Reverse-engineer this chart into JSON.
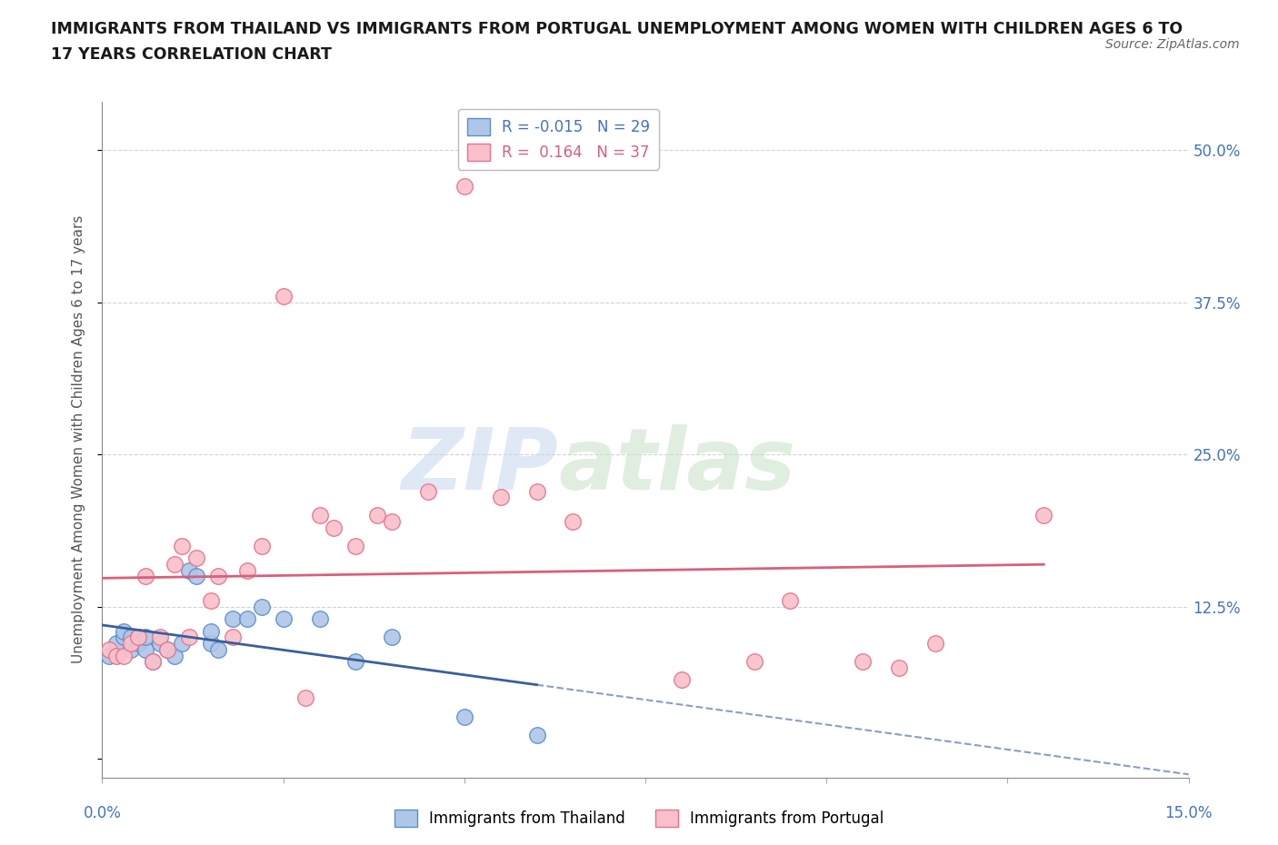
{
  "title": "IMMIGRANTS FROM THAILAND VS IMMIGRANTS FROM PORTUGAL UNEMPLOYMENT AMONG WOMEN WITH CHILDREN AGES 6 TO\n17 YEARS CORRELATION CHART",
  "source_text": "Source: ZipAtlas.com",
  "ylabel": "Unemployment Among Women with Children Ages 6 to 17 years",
  "xlim": [
    0.0,
    0.15
  ],
  "ylim": [
    -0.015,
    0.54
  ],
  "yticks": [
    0.0,
    0.125,
    0.25,
    0.375,
    0.5
  ],
  "ytick_labels": [
    "",
    "12.5%",
    "25.0%",
    "37.5%",
    "50.0%"
  ],
  "r_thailand": -0.015,
  "n_thailand": 29,
  "r_portugal": 0.164,
  "n_portugal": 37,
  "watermark_zip": "ZIP",
  "watermark_atlas": "atlas",
  "thailand_color": "#aec6e8",
  "portugal_color": "#f9c0cb",
  "thailand_edge_color": "#5b8fc9",
  "portugal_edge_color": "#e8728a",
  "thailand_line_color": "#3a5f9f",
  "portugal_line_color": "#d9607a",
  "background_color": "#ffffff",
  "thailand_x": [
    0.001,
    0.002,
    0.003,
    0.003,
    0.004,
    0.004,
    0.005,
    0.005,
    0.006,
    0.006,
    0.007,
    0.008,
    0.009,
    0.01,
    0.011,
    0.012,
    0.013,
    0.015,
    0.015,
    0.016,
    0.018,
    0.02,
    0.022,
    0.025,
    0.03,
    0.035,
    0.04,
    0.05,
    0.06
  ],
  "thailand_y": [
    0.085,
    0.095,
    0.1,
    0.105,
    0.09,
    0.1,
    0.095,
    0.1,
    0.09,
    0.1,
    0.08,
    0.095,
    0.09,
    0.085,
    0.095,
    0.155,
    0.15,
    0.095,
    0.105,
    0.09,
    0.115,
    0.115,
    0.125,
    0.115,
    0.115,
    0.08,
    0.1,
    0.035,
    0.02
  ],
  "portugal_x": [
    0.001,
    0.002,
    0.003,
    0.004,
    0.005,
    0.006,
    0.007,
    0.008,
    0.009,
    0.01,
    0.011,
    0.012,
    0.013,
    0.015,
    0.016,
    0.018,
    0.02,
    0.022,
    0.025,
    0.028,
    0.03,
    0.032,
    0.035,
    0.038,
    0.04,
    0.045,
    0.05,
    0.055,
    0.06,
    0.065,
    0.08,
    0.09,
    0.095,
    0.105,
    0.11,
    0.115,
    0.13
  ],
  "portugal_y": [
    0.09,
    0.085,
    0.085,
    0.095,
    0.1,
    0.15,
    0.08,
    0.1,
    0.09,
    0.16,
    0.175,
    0.1,
    0.165,
    0.13,
    0.15,
    0.1,
    0.155,
    0.175,
    0.38,
    0.05,
    0.2,
    0.19,
    0.175,
    0.2,
    0.195,
    0.22,
    0.47,
    0.215,
    0.22,
    0.195,
    0.065,
    0.08,
    0.13,
    0.08,
    0.075,
    0.095,
    0.2
  ],
  "xtick_positions": [
    0.0,
    0.025,
    0.05,
    0.075,
    0.1,
    0.125,
    0.15
  ],
  "grid_color": "#c8c8c8",
  "spine_color": "#888888"
}
